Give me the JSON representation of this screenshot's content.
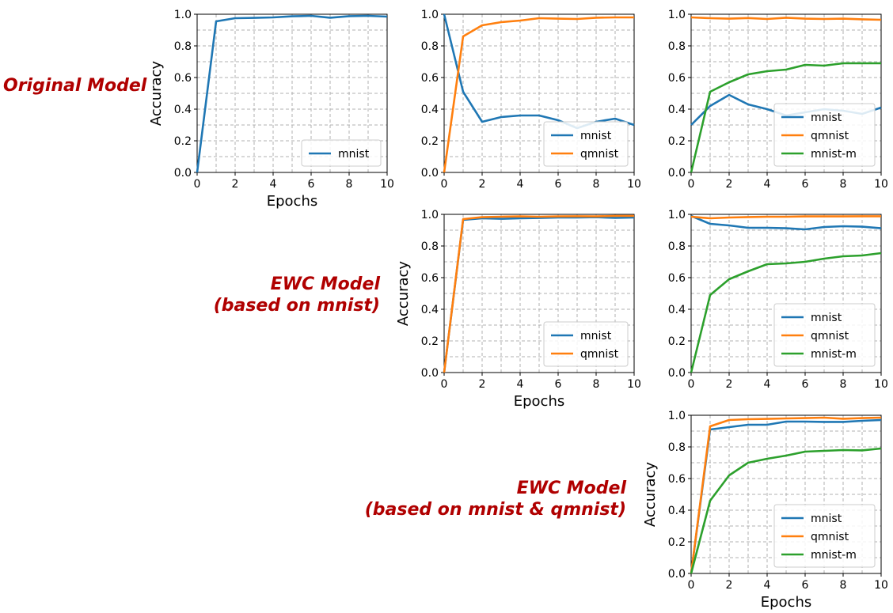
{
  "colors": {
    "mnist": "#1f77b4",
    "qmnist": "#ff7f0e",
    "mnist-m": "#2ca02c",
    "row_label": "#b00000"
  },
  "row_labels": {
    "original": [
      "Original Model"
    ],
    "ewc_mnist": [
      "EWC Model",
      "(based on mnist)"
    ],
    "ewc_mnist_qmnist": [
      "EWC Model",
      "(based on mnist & qmnist)"
    ]
  },
  "chart_data": [
    {
      "type": "line",
      "x": [
        0,
        1,
        2,
        3,
        4,
        5,
        6,
        7,
        8,
        9,
        10
      ],
      "series": [
        {
          "name": "mnist",
          "values": [
            0.0,
            0.955,
            0.975,
            0.977,
            0.98,
            0.987,
            0.99,
            0.978,
            0.988,
            0.99,
            0.985
          ]
        }
      ],
      "xlabel": "Epochs",
      "ylabel": "Accuracy",
      "xlim": [
        0,
        10
      ],
      "ylim": [
        0,
        1
      ],
      "xticks": [
        "0",
        "2",
        "4",
        "6",
        "8",
        "10"
      ],
      "yticks": [
        "0.0",
        "0.2",
        "0.4",
        "0.6",
        "0.8",
        "1.0"
      ],
      "grid": true,
      "legend": "lower-right"
    },
    {
      "type": "line",
      "x": [
        0,
        1,
        2,
        3,
        4,
        5,
        6,
        7,
        8,
        9,
        10
      ],
      "series": [
        {
          "name": "mnist",
          "values": [
            1.0,
            0.51,
            0.32,
            0.35,
            0.36,
            0.36,
            0.33,
            0.28,
            0.32,
            0.34,
            0.3
          ]
        },
        {
          "name": "qmnist",
          "values": [
            0.0,
            0.86,
            0.93,
            0.95,
            0.96,
            0.975,
            0.972,
            0.97,
            0.978,
            0.98,
            0.98
          ]
        }
      ],
      "xlabel": "",
      "ylabel": "",
      "xlim": [
        0,
        10
      ],
      "ylim": [
        0,
        1
      ],
      "xticks": [
        "0",
        "2",
        "4",
        "6",
        "8",
        "10"
      ],
      "yticks": [
        "0.0",
        "0.2",
        "0.4",
        "0.6",
        "0.8",
        "1.0"
      ],
      "grid": true,
      "legend": "lower-right"
    },
    {
      "type": "line",
      "x": [
        0,
        1,
        2,
        3,
        4,
        5,
        6,
        7,
        8,
        9,
        10
      ],
      "series": [
        {
          "name": "mnist",
          "values": [
            0.3,
            0.42,
            0.49,
            0.43,
            0.4,
            0.36,
            0.38,
            0.4,
            0.39,
            0.37,
            0.41
          ]
        },
        {
          "name": "qmnist",
          "values": [
            0.98,
            0.975,
            0.972,
            0.976,
            0.97,
            0.978,
            0.972,
            0.97,
            0.972,
            0.968,
            0.965
          ]
        },
        {
          "name": "mnist-m",
          "values": [
            0.0,
            0.51,
            0.57,
            0.62,
            0.64,
            0.65,
            0.68,
            0.675,
            0.69,
            0.69,
            0.69
          ]
        }
      ],
      "xlabel": "",
      "ylabel": "",
      "xlim": [
        0,
        10
      ],
      "ylim": [
        0,
        1
      ],
      "xticks": [
        "0",
        "2",
        "4",
        "6",
        "8",
        "10"
      ],
      "yticks": [
        "0.0",
        "0.2",
        "0.4",
        "0.6",
        "0.8",
        "1.0"
      ],
      "grid": true,
      "legend": "lower-right"
    },
    {
      "type": "line",
      "x": [
        0,
        1,
        2,
        3,
        4,
        5,
        6,
        7,
        8,
        9,
        10
      ],
      "series": [
        {
          "name": "mnist",
          "values": [
            0.0,
            0.965,
            0.975,
            0.972,
            0.975,
            0.977,
            0.98,
            0.98,
            0.982,
            0.978,
            0.98
          ]
        },
        {
          "name": "qmnist",
          "values": [
            0.0,
            0.97,
            0.982,
            0.985,
            0.987,
            0.985,
            0.987,
            0.988,
            0.987,
            0.99,
            0.99
          ]
        }
      ],
      "xlabel": "Epochs",
      "ylabel": "Accuracy",
      "xlim": [
        0,
        10
      ],
      "ylim": [
        0,
        1
      ],
      "xticks": [
        "0",
        "2",
        "4",
        "6",
        "8",
        "10"
      ],
      "yticks": [
        "0.0",
        "0.2",
        "0.4",
        "0.6",
        "0.8",
        "1.0"
      ],
      "grid": true,
      "legend": "lower-right"
    },
    {
      "type": "line",
      "x": [
        0,
        1,
        2,
        3,
        4,
        5,
        6,
        7,
        8,
        9,
        10
      ],
      "series": [
        {
          "name": "mnist",
          "values": [
            0.99,
            0.94,
            0.93,
            0.915,
            0.915,
            0.912,
            0.905,
            0.92,
            0.925,
            0.922,
            0.912
          ]
        },
        {
          "name": "qmnist",
          "values": [
            0.985,
            0.975,
            0.98,
            0.983,
            0.985,
            0.985,
            0.987,
            0.987,
            0.987,
            0.988,
            0.988
          ]
        },
        {
          "name": "mnist-m",
          "values": [
            0.0,
            0.49,
            0.59,
            0.64,
            0.685,
            0.69,
            0.7,
            0.72,
            0.735,
            0.74,
            0.755
          ]
        }
      ],
      "xlabel": "",
      "ylabel": "",
      "xlim": [
        0,
        10
      ],
      "ylim": [
        0,
        1
      ],
      "xticks": [
        "0",
        "2",
        "4",
        "6",
        "8",
        "10"
      ],
      "yticks": [
        "0.0",
        "0.2",
        "0.4",
        "0.6",
        "0.8",
        "1.0"
      ],
      "grid": true,
      "legend": "lower-right"
    },
    {
      "type": "line",
      "x": [
        0,
        1,
        2,
        3,
        4,
        5,
        6,
        7,
        8,
        9,
        10
      ],
      "series": [
        {
          "name": "mnist",
          "values": [
            0.0,
            0.91,
            0.925,
            0.94,
            0.94,
            0.96,
            0.96,
            0.958,
            0.958,
            0.965,
            0.97
          ]
        },
        {
          "name": "qmnist",
          "values": [
            0.0,
            0.93,
            0.97,
            0.975,
            0.977,
            0.98,
            0.982,
            0.985,
            0.978,
            0.982,
            0.985
          ]
        },
        {
          "name": "mnist-m",
          "values": [
            0.0,
            0.46,
            0.62,
            0.7,
            0.725,
            0.745,
            0.77,
            0.775,
            0.78,
            0.778,
            0.79
          ]
        }
      ],
      "xlabel": "Epochs",
      "ylabel": "Accuracy",
      "xlim": [
        0,
        10
      ],
      "ylim": [
        0,
        1
      ],
      "xticks": [
        "0",
        "2",
        "4",
        "6",
        "8",
        "10"
      ],
      "yticks": [
        "0.0",
        "0.2",
        "0.4",
        "0.6",
        "0.8",
        "1.0"
      ],
      "grid": true,
      "legend": "lower-right"
    }
  ]
}
